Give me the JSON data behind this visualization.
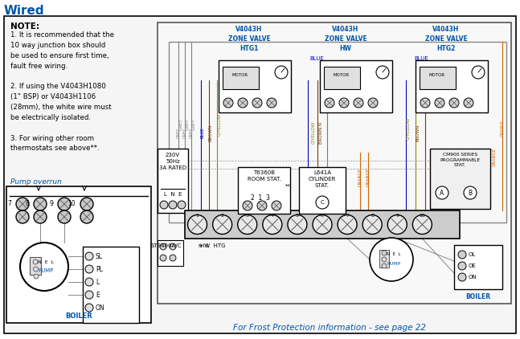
{
  "title": "Wired",
  "bg_color": "#ffffff",
  "note_title": "NOTE:",
  "note_lines": [
    "1. It is recommended that the",
    "10 way junction box should",
    "be used to ensure first time,",
    "fault free wiring.",
    "",
    "2. If using the V4043H1080",
    "(1\" BSP) or V4043H1106",
    "(28mm), the white wire must",
    "be electrically isolated.",
    "",
    "3. For wiring other room",
    "thermostats see above**."
  ],
  "pump_overrun_label": "Pump overrun",
  "frost_text": "For Frost Protection information - see page 22",
  "title_color": "#0055aa",
  "note_color": "#0055aa",
  "frost_color": "#0055aa",
  "grey": "#808080",
  "dark_grey": "#555555",
  "blue": "#0000cc",
  "brown": "#7a3800",
  "gyellow": "#888800",
  "orange": "#cc6600",
  "black": "#000000",
  "valve_color": "#0055aa",
  "body_bg": "#f0f0f0",
  "main_bg": "#f5f5f5"
}
